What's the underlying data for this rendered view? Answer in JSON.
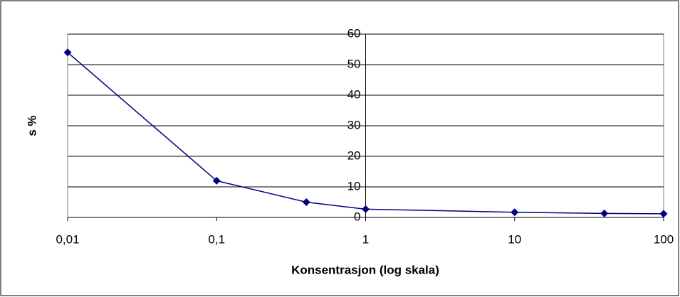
{
  "chart_data": {
    "type": "line",
    "xlabel": "Konsentrasjon (log skala)",
    "ylabel": "s %",
    "x": [
      0.01,
      0.1,
      0.4,
      1,
      10,
      40,
      100
    ],
    "series": [
      {
        "color": "#000080",
        "values": [
          54,
          12,
          5,
          2.7,
          1.7,
          1.3,
          1.2
        ]
      }
    ],
    "xscale": "log",
    "xlim": [
      0.01,
      100
    ],
    "xticks": [
      {
        "value": 0.01,
        "label": "0,01"
      },
      {
        "value": 0.1,
        "label": "0,1"
      },
      1,
      10,
      100
    ],
    "ylim": [
      0,
      60
    ],
    "yticks": [
      0,
      10,
      20,
      30,
      40,
      50,
      60
    ],
    "y_axis_crosses_x": 1,
    "grid": true
  }
}
